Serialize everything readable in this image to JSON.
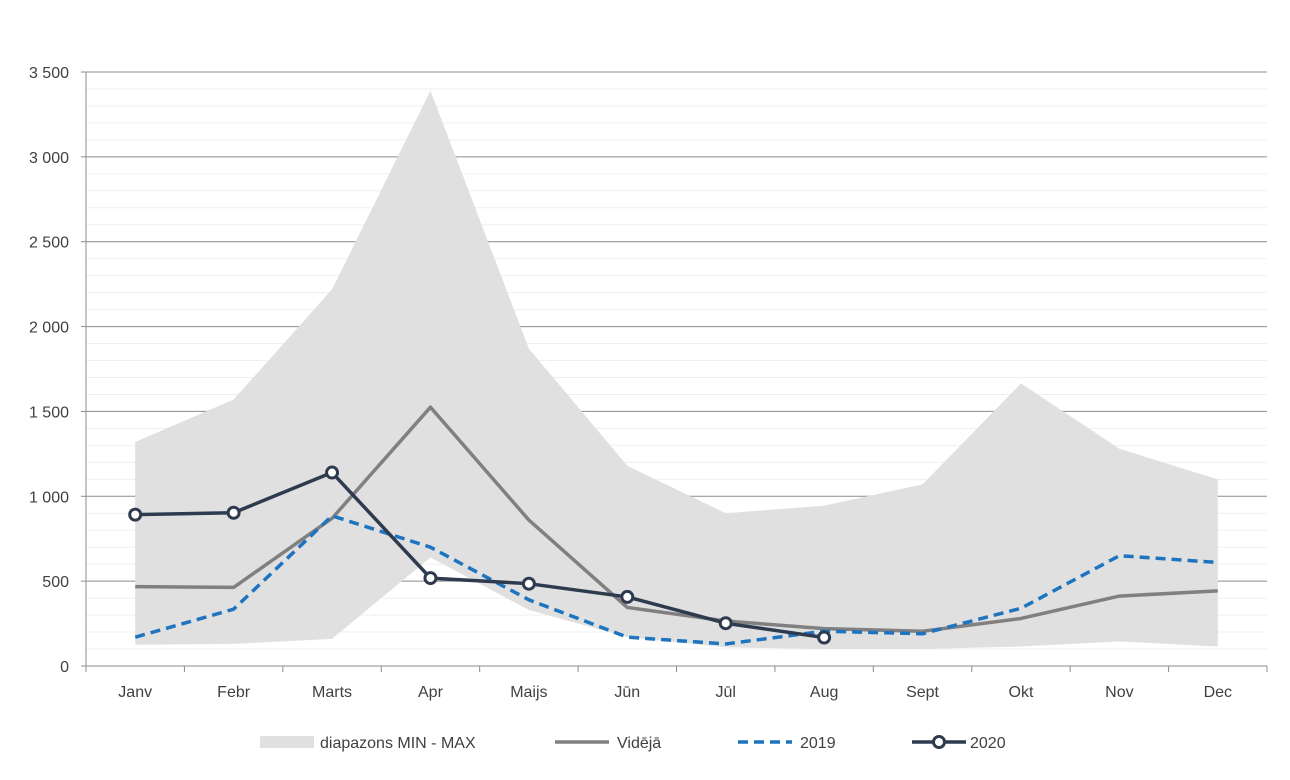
{
  "chart_data": {
    "type": "line",
    "categories": [
      "Janv",
      "Febr",
      "Marts",
      "Apr",
      "Maijs",
      "Jūn",
      "Jūl",
      "Aug",
      "Sept",
      "Okt",
      "Nov",
      "Dec"
    ],
    "ylim": [
      0,
      3500
    ],
    "yticks": [
      0,
      500,
      1000,
      1500,
      2000,
      2500,
      3000,
      3500
    ],
    "ytick_labels": [
      "0",
      "500",
      "1 000",
      "1 500",
      "2 000",
      "2 500",
      "3 000",
      "3 500"
    ],
    "grid": "horizontal",
    "legend_position": "bottom",
    "band": {
      "name": "diapazons MIN - MAX",
      "color": "#e0e0e0",
      "min": [
        125,
        130,
        160,
        640,
        330,
        170,
        110,
        100,
        100,
        115,
        145,
        115
      ],
      "max": [
        1320,
        1570,
        2220,
        3390,
        1870,
        1180,
        900,
        945,
        1070,
        1665,
        1280,
        1100
      ]
    },
    "series": [
      {
        "name": "Vidējā",
        "color": "#808080",
        "style": "solid",
        "marker": "none",
        "values": [
          468,
          463,
          870,
          1525,
          860,
          345,
          265,
          220,
          205,
          280,
          412,
          443
        ]
      },
      {
        "name": "2019",
        "color": "#1f74bf",
        "style": "dashed",
        "marker": "none",
        "values": [
          170,
          335,
          885,
          700,
          390,
          170,
          130,
          205,
          190,
          340,
          650,
          610
        ]
      },
      {
        "name": "2020",
        "color": "#2e3b4e",
        "style": "solid",
        "marker": "circle",
        "values": [
          892,
          903,
          1140,
          518,
          485,
          407,
          252,
          168,
          null,
          null,
          null,
          null
        ]
      }
    ]
  }
}
